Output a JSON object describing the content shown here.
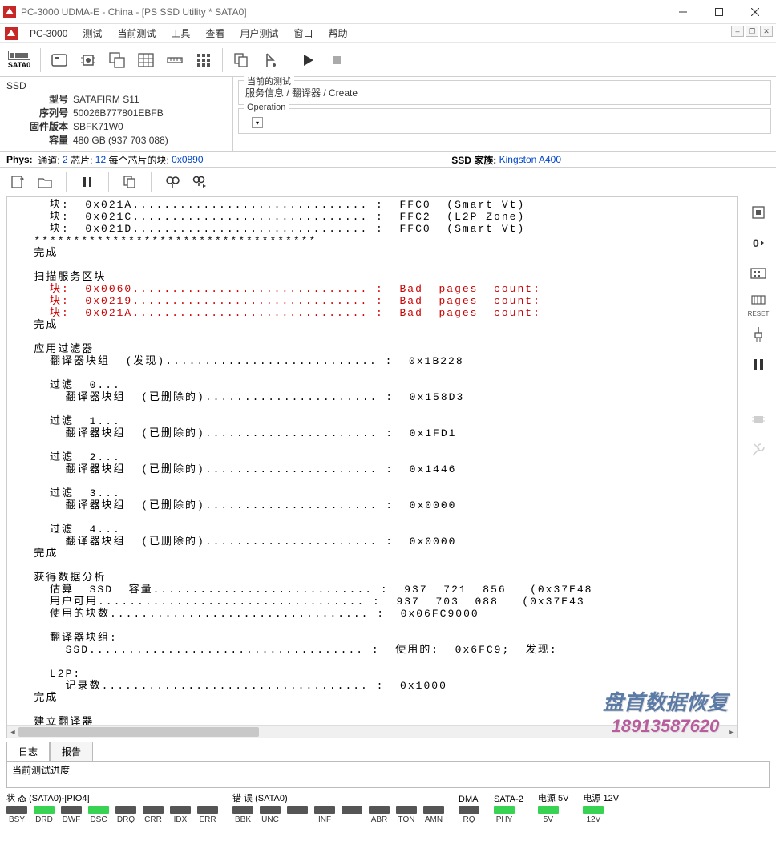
{
  "window": {
    "title": "PC-3000 UDMA-E - China - [PS SSD Utility * SATA0]"
  },
  "menubar": {
    "brand": "PC-3000",
    "items": [
      "测试",
      "当前测试",
      "工具",
      "查看",
      "用户测试",
      "窗口",
      "帮助"
    ]
  },
  "toolbar": {
    "sata_label": "SATA0"
  },
  "ssd": {
    "header": "SSD",
    "model_label": "型号",
    "model": "SATAFIRM   S11",
    "serial_label": "序列号",
    "serial": "50026B777801EBFB",
    "fw_label": "固件版本",
    "fw": "SBFK71W0",
    "capacity_label": "容量",
    "capacity": "480 GB (937 703 088)"
  },
  "right": {
    "cur_test_label": "当前的测试",
    "cur_test": "服务信息 / 翻译器 / Create",
    "operation_label": "Operation"
  },
  "phys": {
    "label": "Phys:",
    "channels_label": "通道:",
    "channels": "2",
    "chips_label": "芯片:",
    "chips": "12",
    "blocks_label": "每个芯片的块:",
    "blocks": "0x0890",
    "family_label": "SSD 家族:",
    "family": "Kingston A400"
  },
  "log": "     块:  0x021A.............................. :  FFC0  (Smart Vt)\n     块:  0x021C.............................. :  FFC2  (L2P Zone)\n     块:  0x021D.............................. :  FFC0  (Smart Vt)\n   ************************************\n   完成\n\n   扫描服务区块\n<red>     块:  0x0060.............................. :  Bad  pages  count:</red>\n<red>     块:  0x0219.............................. :  Bad  pages  count:</red>\n<red>     块:  0x021A.............................. :  Bad  pages  count:</red>\n   完成\n\n   应用过滤器\n     翻译器块组  (发现)........................... :  0x1B228\n\n     过滤  0...\n       翻译器块组  (已删除的)...................... :  0x158D3\n\n     过滤  1...\n       翻译器块组  (已删除的)...................... :  0x1FD1\n\n     过滤  2...\n       翻译器块组  (已删除的)...................... :  0x1446\n\n     过滤  3...\n       翻译器块组  (已删除的)...................... :  0x0000\n\n     过滤  4...\n       翻译器块组  (已删除的)...................... :  0x0000\n   完成\n\n   获得数据分析\n     估算  SSD  容量............................ :  937  721  856   (0x37E48\n     用户可用.................................. :  937  703  088   (0x37E43\n     使用的块数................................. :  0x06FC9000\n\n     翻译器块组:\n       SSD................................... :  使用的:  0x6FC9;  发现:\n\n     L2P:\n       记录数.................................. :  0x1000\n   完成\n\n   建立翻译器\n   完成\n **************************************\n 完成\n****************************************\n测试完成",
  "tabs": {
    "log": "日志",
    "report": "报告"
  },
  "progress": {
    "title": "当前测试进度"
  },
  "status": {
    "state_title": "状 态 (SATA0)-[PIO4]",
    "err_title": "错 误 (SATA0)",
    "dma_title": "DMA",
    "sata_title": "SATA-2",
    "p5_title": "电源 5V",
    "p12_title": "电源 12V",
    "state": [
      {
        "l": "BSY",
        "on": false
      },
      {
        "l": "DRD",
        "on": true
      },
      {
        "l": "DWF",
        "on": false
      },
      {
        "l": "DSC",
        "on": true
      },
      {
        "l": "DRQ",
        "on": false
      },
      {
        "l": "CRR",
        "on": false
      },
      {
        "l": "IDX",
        "on": false
      },
      {
        "l": "ERR",
        "on": false
      }
    ],
    "err": [
      {
        "l": "BBK",
        "on": false
      },
      {
        "l": "UNC",
        "on": false
      },
      {
        "l": "",
        "on": false
      },
      {
        "l": "INF",
        "on": false
      },
      {
        "l": "",
        "on": false
      },
      {
        "l": "ABR",
        "on": false
      },
      {
        "l": "TON",
        "on": false
      },
      {
        "l": "AMN",
        "on": false
      }
    ],
    "dma": [
      {
        "l": "RQ",
        "on": false
      }
    ],
    "sata": [
      {
        "l": "PHY",
        "on": true
      }
    ],
    "p5": [
      {
        "l": "5V",
        "on": true
      }
    ],
    "p12": [
      {
        "l": "12V",
        "on": true
      }
    ]
  },
  "watermark": {
    "line1": "盘首数据恢复",
    "line2": "18913587620"
  }
}
